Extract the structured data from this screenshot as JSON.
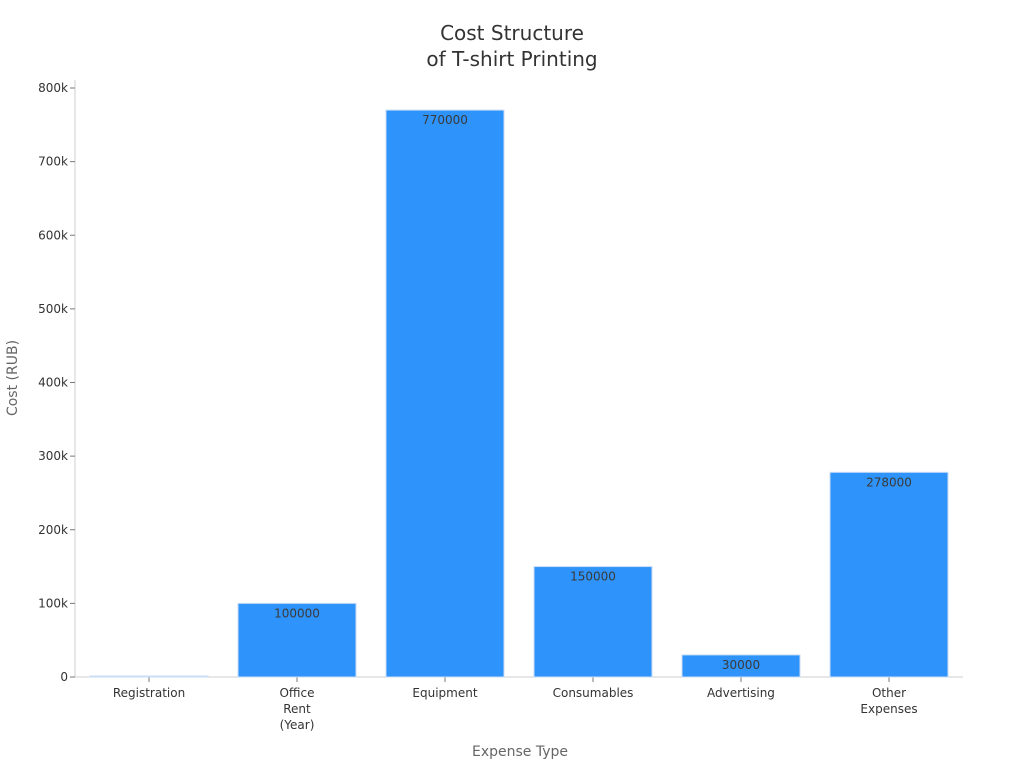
{
  "chart_data": {
    "type": "bar",
    "title": [
      "Cost Structure",
      "of T-shirt Printing"
    ],
    "xlabel": "Expense Type",
    "ylabel": "Cost (RUB)",
    "ylim": [
      0,
      800000
    ],
    "yticks": [
      0,
      100000,
      200000,
      300000,
      400000,
      500000,
      600000,
      700000,
      800000
    ],
    "ytick_labels": [
      "0",
      "100k",
      "200k",
      "300k",
      "400k",
      "500k",
      "600k",
      "700k",
      "800k"
    ],
    "grid": false,
    "legend": "none",
    "categories": [
      [
        "Registration"
      ],
      [
        "Office",
        "Rent",
        "(Year)"
      ],
      [
        "Equipment"
      ],
      [
        "Consumables"
      ],
      [
        "Advertising"
      ],
      [
        "Other",
        "Expenses"
      ]
    ],
    "values": [
      1000,
      100000,
      770000,
      150000,
      30000,
      278000
    ],
    "data_labels": [
      "",
      "100000",
      "770000",
      "150000",
      "30000",
      "278000"
    ],
    "colors": {
      "bar_fill": "#2e93fa",
      "bar_stroke": "#c9def5"
    }
  }
}
